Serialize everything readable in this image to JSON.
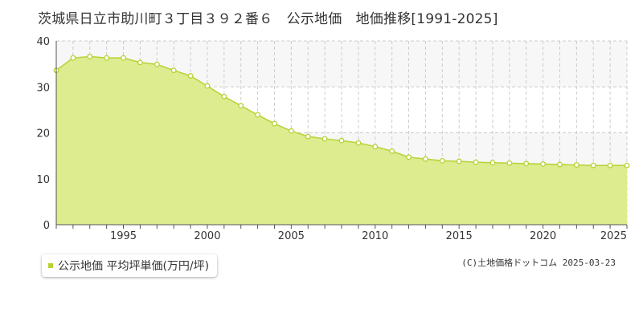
{
  "title": "茨城県日立市助川町３丁目３９２番６　公示地価　地価推移[1991-2025]",
  "legend": {
    "label": "公示地価 平均坪単価(万円/坪)",
    "color": "#b5d334"
  },
  "copyright": "(C)土地価格ドットコム 2025-03-23",
  "chart_data": {
    "type": "area",
    "title": "",
    "xlabel": "",
    "ylabel": "",
    "xlim": [
      1991,
      2025
    ],
    "ylim": [
      0,
      40
    ],
    "yticks": [
      0,
      10,
      20,
      30,
      40
    ],
    "xticks": [
      1995,
      2000,
      2005,
      2010,
      2015,
      2020,
      2025
    ],
    "grid": true,
    "legend_position": "bottom-left",
    "colors": {
      "fill": "#dcec8f",
      "line": "#b5d334",
      "marker_fill": "#ffffff",
      "band": "#f7f7f7",
      "grid": "#cccccc"
    },
    "series": [
      {
        "name": "公示地価 平均坪単価(万円/坪)",
        "x": [
          1991,
          1992,
          1993,
          1994,
          1995,
          1996,
          1997,
          1998,
          1999,
          2000,
          2001,
          2002,
          2003,
          2004,
          2005,
          2006,
          2007,
          2008,
          2009,
          2010,
          2011,
          2012,
          2013,
          2014,
          2015,
          2016,
          2017,
          2018,
          2019,
          2020,
          2021,
          2022,
          2023,
          2024,
          2025
        ],
        "values": [
          33.6,
          36.3,
          36.6,
          36.3,
          36.3,
          35.3,
          34.9,
          33.6,
          32.4,
          30.2,
          27.9,
          25.9,
          23.9,
          22.0,
          20.4,
          19.2,
          18.7,
          18.3,
          17.8,
          17.0,
          16.0,
          14.7,
          14.3,
          13.9,
          13.8,
          13.6,
          13.5,
          13.4,
          13.3,
          13.2,
          13.1,
          13.0,
          12.9,
          12.9,
          12.9
        ]
      }
    ]
  }
}
